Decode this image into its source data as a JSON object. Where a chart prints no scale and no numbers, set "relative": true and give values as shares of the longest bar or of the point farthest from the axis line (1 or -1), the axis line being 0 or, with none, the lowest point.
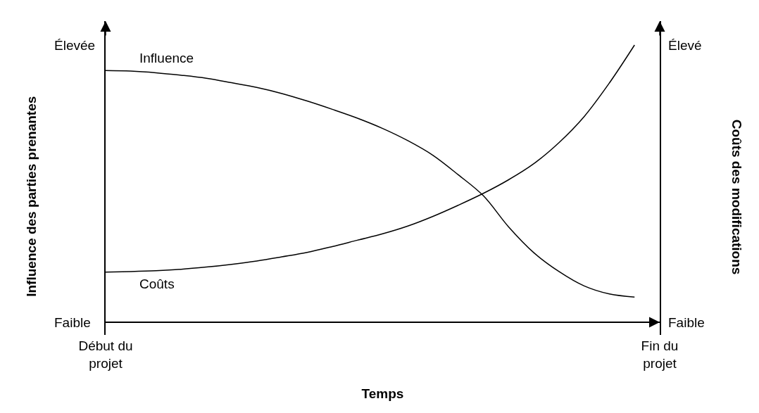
{
  "chart_data": {
    "type": "line",
    "relative": true,
    "legend": false,
    "xlabel": "Temps",
    "ylabel": "Influence des parties prenantes",
    "y2label": "Coûts des modifications",
    "categories": [
      "Début du projet",
      null,
      null,
      null,
      null,
      null,
      null,
      null,
      null,
      null,
      null,
      null,
      null,
      null,
      null,
      null,
      null,
      null,
      null,
      null,
      null,
      null,
      "Fin du projet"
    ],
    "annotations": [
      "Élevée",
      "Faible",
      "Élevé",
      "Faible"
    ],
    "series": [
      {
        "name": "Influence",
        "color": "#000000",
        "values": [
          0.908,
          0.906,
          0.9,
          0.891,
          0.88,
          0.864,
          0.847,
          0.825,
          0.798,
          0.768,
          0.736,
          0.699,
          0.655,
          0.602,
          0.532,
          0.456,
          0.344,
          0.251,
          0.183,
          0.131,
          0.102,
          0.091,
          null
        ]
      },
      {
        "name": "Coûts",
        "color": "#000000",
        "axis": "y2",
        "values": [
          0.181,
          0.183,
          0.186,
          0.191,
          0.199,
          0.209,
          0.221,
          0.236,
          0.252,
          0.273,
          0.296,
          0.319,
          0.347,
          0.382,
          0.422,
          0.465,
          0.514,
          0.572,
          0.648,
          0.742,
          0.863,
          1.0,
          null
        ]
      }
    ]
  }
}
